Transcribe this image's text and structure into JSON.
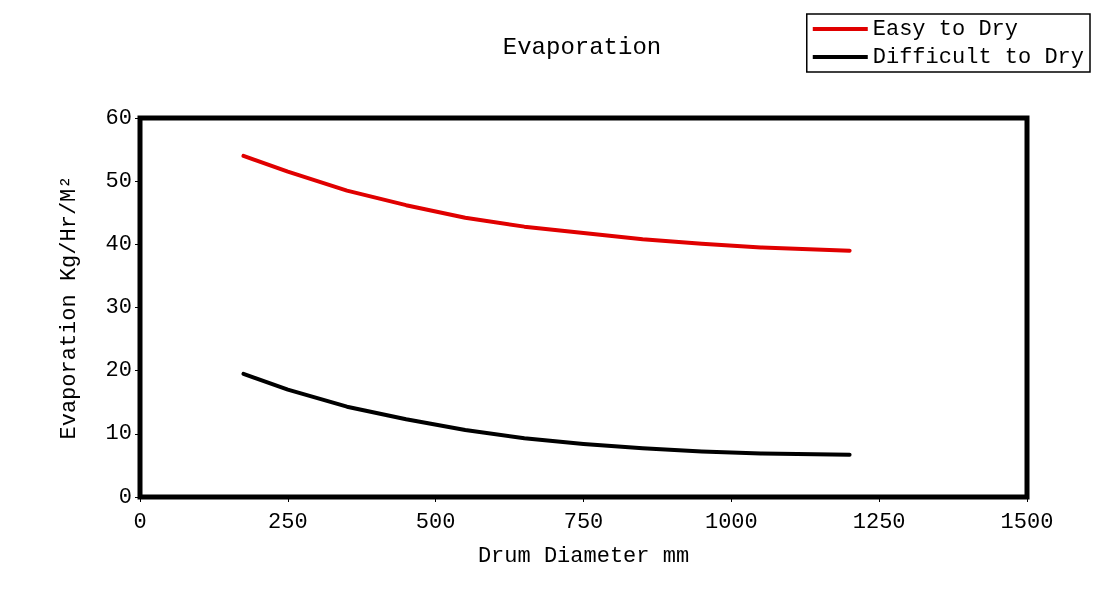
{
  "chart_data": {
    "type": "line",
    "title": "Evaporation",
    "xlabel": "Drum Diameter mm",
    "ylabel": "Evaporation Kg/Hr/M²",
    "x": [
      175,
      250,
      350,
      450,
      550,
      650,
      750,
      850,
      950,
      1050,
      1200
    ],
    "series": [
      {
        "name": "Easy to Dry",
        "color": "#e00000",
        "values": [
          54,
          51.5,
          48.5,
          46.2,
          44.2,
          42.8,
          41.8,
          40.8,
          40.1,
          39.5,
          39
        ]
      },
      {
        "name": "Difficult to Dry",
        "color": "#000000",
        "values": [
          19.5,
          17,
          14.3,
          12.3,
          10.6,
          9.3,
          8.4,
          7.7,
          7.2,
          6.9,
          6.7
        ]
      }
    ],
    "xlim": [
      0,
      1500
    ],
    "xticks": [
      0,
      250,
      500,
      750,
      1000,
      1250,
      1500
    ],
    "ylim": [
      0,
      60
    ],
    "yticks": [
      0,
      10,
      20,
      30,
      40,
      50,
      60
    ],
    "grid": false,
    "legend": "top right",
    "marker": "none",
    "line_style": "solid"
  }
}
